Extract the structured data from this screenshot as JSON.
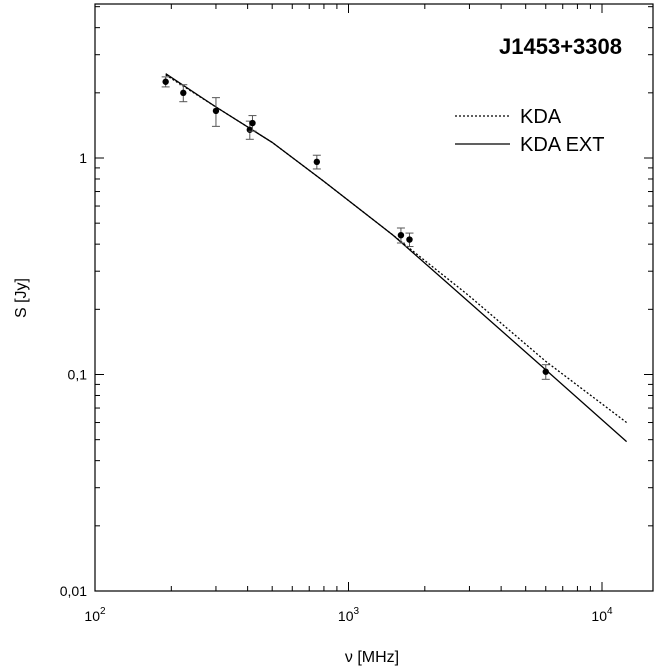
{
  "chart_data": {
    "type": "scatter",
    "title": "J1453+3308",
    "xlabel": "ν [MHz]",
    "ylabel": "S [Jy]",
    "xscale": "log",
    "yscale": "log",
    "xlim": [
      100,
      15000
    ],
    "ylim": [
      0.01,
      5
    ],
    "xticks": [
      {
        "value": 100,
        "base": "10",
        "exp": "2"
      },
      {
        "value": 1000,
        "base": "10",
        "exp": "3"
      },
      {
        "value": 10000,
        "base": "10",
        "exp": "4"
      }
    ],
    "yticks": [
      {
        "value": 0.01,
        "label": "0,01"
      },
      {
        "value": 0.1,
        "label": "0,1"
      },
      {
        "value": 1,
        "label": "1"
      }
    ],
    "grid": false,
    "legend_position": "top-right",
    "points": [
      {
        "x": 190,
        "y": 2.25,
        "err": 0.12
      },
      {
        "x": 223,
        "y": 2.0,
        "err": 0.18
      },
      {
        "x": 300,
        "y": 1.65,
        "err": 0.25
      },
      {
        "x": 408,
        "y": 1.35,
        "err": 0.13
      },
      {
        "x": 418,
        "y": 1.45,
        "err": 0.12
      },
      {
        "x": 750,
        "y": 0.96,
        "err": 0.07
      },
      {
        "x": 1610,
        "y": 0.44,
        "err": 0.035
      },
      {
        "x": 1740,
        "y": 0.42,
        "err": 0.03
      },
      {
        "x": 6000,
        "y": 0.103,
        "err": 0.008
      }
    ],
    "series": [
      {
        "name": "KDA",
        "style": "dotted",
        "points": [
          [
            190,
            2.42
          ],
          [
            300,
            1.72
          ],
          [
            500,
            1.18
          ],
          [
            800,
            0.78
          ],
          [
            1500,
            0.44
          ],
          [
            3000,
            0.23
          ],
          [
            6000,
            0.115
          ],
          [
            12500,
            0.06
          ]
        ]
      },
      {
        "name": "KDA EXT",
        "style": "solid",
        "points": [
          [
            190,
            2.45
          ],
          [
            300,
            1.72
          ],
          [
            500,
            1.18
          ],
          [
            800,
            0.78
          ],
          [
            1500,
            0.44
          ],
          [
            3000,
            0.215
          ],
          [
            6000,
            0.105
          ],
          [
            12500,
            0.049
          ]
        ]
      }
    ]
  }
}
